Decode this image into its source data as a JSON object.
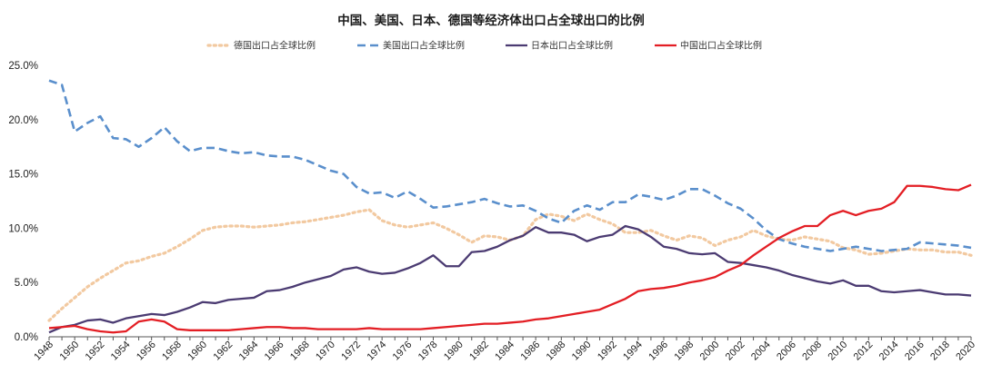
{
  "chart_data": {
    "type": "line",
    "title": "中国、美国、日本、德国等经济体出口占全球出口的比例",
    "xlabel": "",
    "ylabel": "",
    "ylim": [
      0,
      25
    ],
    "yticks": [
      "0.0%",
      "5.0%",
      "10.0%",
      "15.0%",
      "20.0%",
      "25.0%"
    ],
    "xlim": [
      1948,
      2020
    ],
    "xticks": [
      "1948",
      "1950",
      "1952",
      "1954",
      "1956",
      "1958",
      "1960",
      "1962",
      "1964",
      "1966",
      "1968",
      "1970",
      "1972",
      "1974",
      "1976",
      "1978",
      "1980",
      "1982",
      "1984",
      "1986",
      "1988",
      "1990",
      "1992",
      "1994",
      "1996",
      "1998",
      "2000",
      "2002",
      "2004",
      "2006",
      "2008",
      "2010",
      "2012",
      "2014",
      "2016",
      "2018",
      "2020"
    ],
    "grid": false,
    "legend_position": "top",
    "x": [
      1948,
      1949,
      1950,
      1951,
      1952,
      1953,
      1954,
      1955,
      1956,
      1957,
      1958,
      1959,
      1960,
      1961,
      1962,
      1963,
      1964,
      1965,
      1966,
      1967,
      1968,
      1969,
      1970,
      1971,
      1972,
      1973,
      1974,
      1975,
      1976,
      1977,
      1978,
      1979,
      1980,
      1981,
      1982,
      1983,
      1984,
      1985,
      1986,
      1987,
      1988,
      1989,
      1990,
      1991,
      1992,
      1993,
      1994,
      1995,
      1996,
      1997,
      1998,
      1999,
      2000,
      2001,
      2002,
      2003,
      2004,
      2005,
      2006,
      2007,
      2008,
      2009,
      2010,
      2011,
      2012,
      2013,
      2014,
      2015,
      2016,
      2017,
      2018,
      2019,
      2020
    ],
    "series": [
      {
        "name": "德国出口占全球比例",
        "color": "#f2c9a0",
        "style": "dotted",
        "values": [
          1.5,
          2.6,
          3.6,
          4.6,
          5.4,
          6.1,
          6.8,
          7.0,
          7.4,
          7.7,
          8.3,
          9.0,
          9.8,
          10.1,
          10.2,
          10.2,
          10.1,
          10.2,
          10.3,
          10.5,
          10.6,
          10.8,
          11.0,
          11.2,
          11.5,
          11.7,
          10.7,
          10.3,
          10.1,
          10.3,
          10.5,
          10.0,
          9.4,
          8.7,
          9.3,
          9.2,
          8.9,
          9.3,
          10.8,
          11.3,
          11.1,
          10.7,
          11.3,
          10.8,
          10.4,
          9.6,
          9.6,
          9.8,
          9.3,
          8.9,
          9.3,
          9.1,
          8.4,
          8.9,
          9.2,
          9.8,
          9.3,
          9.0,
          8.9,
          9.2,
          9.0,
          8.8,
          8.2,
          8.0,
          7.6,
          7.7,
          7.9,
          8.1,
          8.0,
          8.0,
          7.8,
          7.8,
          7.5
        ]
      },
      {
        "name": "美国出口占全球比例",
        "color": "#5a8fcc",
        "style": "dashed",
        "values": [
          23.6,
          23.2,
          18.9,
          19.7,
          20.3,
          18.3,
          18.2,
          17.5,
          18.3,
          19.3,
          18.0,
          17.1,
          17.4,
          17.4,
          17.1,
          16.9,
          17.0,
          16.7,
          16.6,
          16.6,
          16.3,
          15.8,
          15.3,
          15.0,
          13.8,
          13.2,
          13.3,
          12.8,
          13.4,
          12.7,
          11.9,
          12.0,
          12.2,
          12.4,
          12.7,
          12.3,
          12.0,
          12.1,
          11.6,
          10.9,
          10.5,
          11.6,
          12.1,
          11.7,
          12.4,
          12.4,
          13.1,
          12.9,
          12.6,
          13.0,
          13.6,
          13.6,
          13.0,
          12.3,
          11.8,
          10.9,
          9.8,
          9.0,
          8.6,
          8.3,
          8.1,
          7.9,
          8.1,
          8.3,
          8.1,
          7.9,
          8.0,
          8.1,
          8.7,
          8.6,
          8.5,
          8.4,
          8.2
        ]
      },
      {
        "name": "日本出口占全球比例",
        "color": "#4b3b72",
        "style": "solid",
        "values": [
          0.4,
          0.9,
          1.1,
          1.5,
          1.6,
          1.3,
          1.7,
          1.9,
          2.1,
          2.0,
          2.3,
          2.7,
          3.2,
          3.1,
          3.4,
          3.5,
          3.6,
          4.2,
          4.3,
          4.6,
          5.0,
          5.3,
          5.6,
          6.2,
          6.4,
          6.0,
          5.8,
          5.9,
          6.3,
          6.8,
          7.5,
          6.5,
          6.5,
          7.8,
          7.9,
          8.3,
          8.9,
          9.3,
          10.1,
          9.6,
          9.6,
          9.4,
          8.8,
          9.2,
          9.4,
          10.2,
          9.9,
          9.2,
          8.3,
          8.1,
          7.7,
          7.6,
          7.7,
          6.9,
          6.8,
          6.6,
          6.4,
          6.1,
          5.7,
          5.4,
          5.1,
          4.9,
          5.2,
          4.7,
          4.7,
          4.2,
          4.1,
          4.2,
          4.3,
          4.1,
          3.9,
          3.9,
          3.8
        ]
      },
      {
        "name": "中国出口占全球比例",
        "color": "#e31e24",
        "style": "solid",
        "values": [
          0.8,
          0.9,
          1.0,
          0.7,
          0.5,
          0.4,
          0.5,
          1.4,
          1.6,
          1.4,
          0.7,
          0.6,
          0.6,
          0.6,
          0.6,
          0.7,
          0.8,
          0.9,
          0.9,
          0.8,
          0.8,
          0.7,
          0.7,
          0.7,
          0.7,
          0.8,
          0.7,
          0.7,
          0.7,
          0.7,
          0.8,
          0.9,
          1.0,
          1.1,
          1.2,
          1.2,
          1.3,
          1.4,
          1.6,
          1.7,
          1.9,
          2.1,
          2.3,
          2.5,
          3.0,
          3.5,
          4.2,
          4.4,
          4.5,
          4.7,
          5.0,
          5.2,
          5.5,
          6.1,
          6.6,
          7.5,
          8.3,
          9.1,
          9.7,
          10.2,
          10.2,
          11.2,
          11.6,
          11.2,
          11.6,
          11.8,
          12.4,
          13.9,
          13.9,
          13.8,
          13.6,
          13.5,
          14.0
        ]
      }
    ]
  }
}
